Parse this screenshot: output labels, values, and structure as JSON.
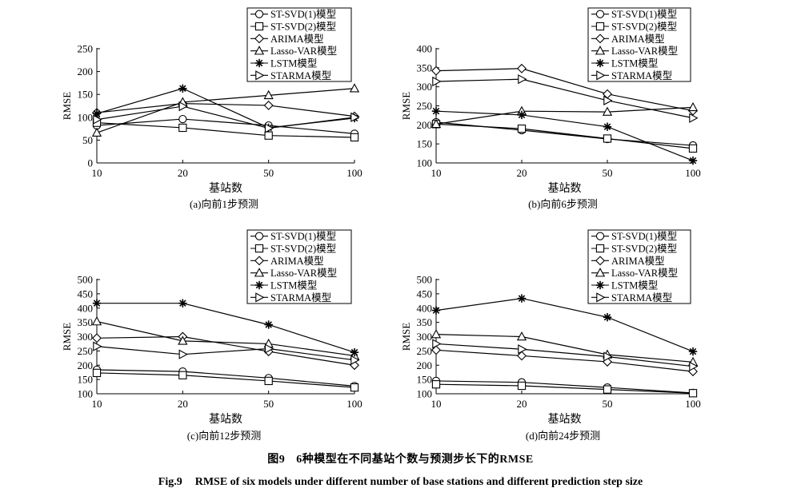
{
  "figure": {
    "caption_cn": {
      "label": "图9",
      "text": "6种模型在不同基站个数与预测步长下的RMSE"
    },
    "caption_en": {
      "label": "Fig.9",
      "text": "RMSE of six models under different number of base stations and different prediction step size"
    }
  },
  "chart_data": [
    {
      "type": "line",
      "subtitle": "(a)向前1步预测",
      "xlabel": "基站数",
      "ylabel": "RMSE",
      "categories": [
        "10",
        "20",
        "50",
        "100"
      ],
      "yticks": [
        0,
        50,
        100,
        150,
        200,
        250
      ],
      "ylim": [
        0,
        250
      ],
      "grid": false,
      "legend": "top-right",
      "series": [
        {
          "name": "ST-SVD(1)模型",
          "marker": "circle",
          "values": [
            82,
            96,
            82,
            64
          ]
        },
        {
          "name": "ST-SVD(2)模型",
          "marker": "square",
          "values": [
            88,
            77,
            60,
            56
          ]
        },
        {
          "name": "ARIMA模型",
          "marker": "diamond",
          "values": [
            110,
            130,
            126,
            102
          ]
        },
        {
          "name": "Lasso-VAR模型",
          "marker": "triangle",
          "values": [
            66,
            133,
            148,
            163
          ]
        },
        {
          "name": "LSTM模型",
          "marker": "asterisk",
          "values": [
            108,
            163,
            77,
            98
          ]
        },
        {
          "name": "STARMA模型",
          "marker": "triangle-right",
          "values": [
            95,
            124,
            76,
            100
          ]
        }
      ]
    },
    {
      "type": "line",
      "subtitle": "(b)向前6步预测",
      "xlabel": "基站数",
      "ylabel": "RMSE",
      "categories": [
        "10",
        "20",
        "50",
        "100"
      ],
      "yticks": [
        100,
        150,
        200,
        250,
        300,
        350,
        400
      ],
      "ylim": [
        100,
        400
      ],
      "grid": false,
      "legend": "top-right",
      "series": [
        {
          "name": "ST-SVD(1)模型",
          "marker": "circle",
          "values": [
            207,
            186,
            163,
            146
          ]
        },
        {
          "name": "ST-SVD(2)模型",
          "marker": "square",
          "values": [
            202,
            190,
            164,
            138
          ]
        },
        {
          "name": "ARIMA模型",
          "marker": "diamond",
          "values": [
            342,
            348,
            281,
            237
          ]
        },
        {
          "name": "Lasso-VAR模型",
          "marker": "triangle",
          "values": [
            202,
            236,
            234,
            246
          ]
        },
        {
          "name": "LSTM模型",
          "marker": "asterisk",
          "values": [
            236,
            226,
            195,
            106
          ]
        },
        {
          "name": "STARMA模型",
          "marker": "triangle-right",
          "values": [
            314,
            320,
            264,
            218
          ]
        }
      ]
    },
    {
      "type": "line",
      "subtitle": "(c)向前12步预测",
      "xlabel": "基站数",
      "ylabel": "RMSE",
      "categories": [
        "10",
        "20",
        "50",
        "100"
      ],
      "yticks": [
        100,
        150,
        200,
        250,
        300,
        350,
        400,
        450,
        500
      ],
      "ylim": [
        100,
        500
      ],
      "grid": false,
      "legend": "top-right",
      "series": [
        {
          "name": "ST-SVD(1)模型",
          "marker": "circle",
          "values": [
            184,
            178,
            155,
            127
          ]
        },
        {
          "name": "ST-SVD(2)模型",
          "marker": "square",
          "values": [
            173,
            165,
            145,
            122
          ]
        },
        {
          "name": "ARIMA模型",
          "marker": "diamond",
          "values": [
            295,
            300,
            248,
            200
          ]
        },
        {
          "name": "Lasso-VAR模型",
          "marker": "triangle",
          "values": [
            353,
            285,
            275,
            233
          ]
        },
        {
          "name": "LSTM模型",
          "marker": "asterisk",
          "values": [
            417,
            417,
            342,
            245
          ]
        },
        {
          "name": "STARMA模型",
          "marker": "triangle-right",
          "values": [
            266,
            238,
            258,
            218
          ]
        }
      ]
    },
    {
      "type": "line",
      "subtitle": "(d)向前24步预测",
      "xlabel": "基站数",
      "ylabel": "RMSE",
      "categories": [
        "10",
        "20",
        "50",
        "100"
      ],
      "yticks": [
        100,
        150,
        200,
        250,
        300,
        350,
        400,
        450,
        500
      ],
      "ylim": [
        100,
        500
      ],
      "grid": false,
      "legend": "top-right",
      "series": [
        {
          "name": "ST-SVD(1)模型",
          "marker": "circle",
          "values": [
            145,
            140,
            122,
            103
          ]
        },
        {
          "name": "ST-SVD(2)模型",
          "marker": "square",
          "values": [
            133,
            128,
            115,
            102
          ]
        },
        {
          "name": "ARIMA模型",
          "marker": "diamond",
          "values": [
            253,
            233,
            212,
            178
          ]
        },
        {
          "name": "Lasso-VAR模型",
          "marker": "triangle",
          "values": [
            308,
            300,
            237,
            211
          ]
        },
        {
          "name": "LSTM模型",
          "marker": "asterisk",
          "values": [
            392,
            434,
            368,
            248
          ]
        },
        {
          "name": "STARMA模型",
          "marker": "triangle-right",
          "values": [
            275,
            256,
            230,
            196
          ]
        }
      ]
    }
  ]
}
